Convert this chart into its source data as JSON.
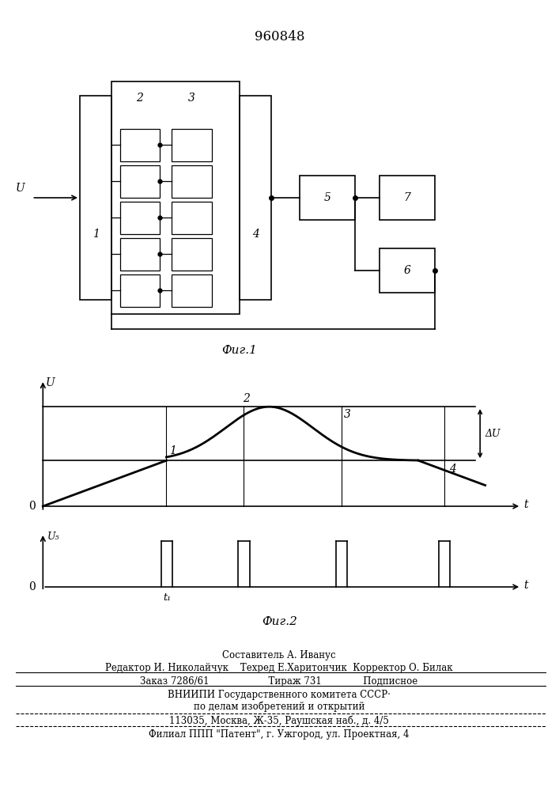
{
  "title": "960848",
  "fig1_caption": "Фиг.1",
  "fig2_caption": "Фиг.2",
  "bg_color": "#ffffff",
  "line_color": "#000000",
  "footer_lines": [
    "Составитель А. Иванус",
    "Редактор И. Николайчук    Техред Е.Харитончик  Корректор О. Билак",
    "Заказ 7286/61                    Тираж 731              Подписное",
    "ВНИИПИ Государственного комитета СССР·",
    "     по делам изобретений и открытий",
    "113035, Москва, Ж-35, Раушская наб., д. 4/5",
    "Филиал ППП \"Патент\", г. Ужгород, ул. Проектная, 4"
  ]
}
